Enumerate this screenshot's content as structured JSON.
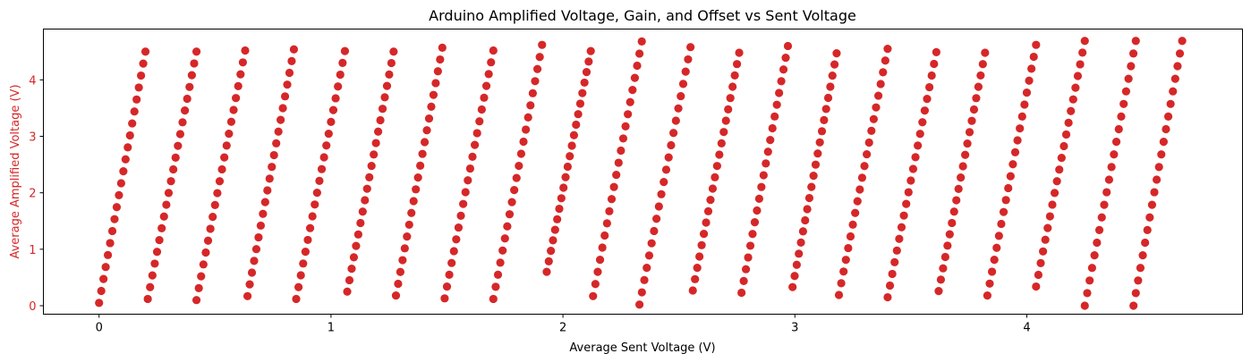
{
  "chart_data": {
    "type": "scatter",
    "title": "Arduino Amplified Voltage, Gain, and Offset vs Sent Voltage",
    "xlabel": "Average Sent Voltage (V)",
    "ylabel": "Average Amplified Voltage (V)",
    "xlim": [
      -0.24,
      4.93
    ],
    "ylim": [
      -0.15,
      4.9
    ],
    "xticks": [
      0,
      1,
      2,
      3,
      4
    ],
    "xtick_labels": [
      "0",
      "1",
      "2",
      "3",
      "4"
    ],
    "yticks": [
      0,
      1,
      2,
      3,
      4
    ],
    "ytick_labels": [
      "0",
      "1",
      "2",
      "3",
      "4"
    ],
    "grid": false,
    "color": "#d62728",
    "ylabel_color": "#d62728",
    "series": [
      {
        "segments": [
          {
            "x0": 0.0,
            "x1": 0.2,
            "y0": 0.05,
            "y1": 4.5
          },
          {
            "x0": 0.21,
            "x1": 0.42,
            "y0": 0.12,
            "y1": 4.5
          },
          {
            "x0": 0.42,
            "x1": 0.63,
            "y0": 0.1,
            "y1": 4.52
          },
          {
            "x0": 0.64,
            "x1": 0.84,
            "y0": 0.17,
            "y1": 4.54
          },
          {
            "x0": 0.85,
            "x1": 1.06,
            "y0": 0.12,
            "y1": 4.51
          },
          {
            "x0": 1.07,
            "x1": 1.27,
            "y0": 0.25,
            "y1": 4.5
          },
          {
            "x0": 1.28,
            "x1": 1.48,
            "y0": 0.18,
            "y1": 4.57
          },
          {
            "x0": 1.49,
            "x1": 1.7,
            "y0": 0.13,
            "y1": 4.52
          },
          {
            "x0": 1.7,
            "x1": 1.91,
            "y0": 0.12,
            "y1": 4.62
          },
          {
            "x0": 1.93,
            "x1": 2.12,
            "y0": 0.6,
            "y1": 4.51
          },
          {
            "x0": 2.13,
            "x1": 2.34,
            "y0": 0.17,
            "y1": 4.68
          },
          {
            "x0": 2.33,
            "x1": 2.55,
            "y0": 0.02,
            "y1": 4.58
          },
          {
            "x0": 2.56,
            "x1": 2.76,
            "y0": 0.27,
            "y1": 4.48
          },
          {
            "x0": 2.77,
            "x1": 2.97,
            "y0": 0.23,
            "y1": 4.6
          },
          {
            "x0": 2.99,
            "x1": 3.18,
            "y0": 0.33,
            "y1": 4.47
          },
          {
            "x0": 3.19,
            "x1": 3.4,
            "y0": 0.19,
            "y1": 4.55
          },
          {
            "x0": 3.4,
            "x1": 3.61,
            "y0": 0.15,
            "y1": 4.49
          },
          {
            "x0": 3.62,
            "x1": 3.82,
            "y0": 0.26,
            "y1": 4.48
          },
          {
            "x0": 3.83,
            "x1": 4.04,
            "y0": 0.18,
            "y1": 4.62
          },
          {
            "x0": 4.04,
            "x1": 4.25,
            "y0": 0.34,
            "y1": 4.69
          },
          {
            "x0": 4.25,
            "x1": 4.47,
            "y0": 0.0,
            "y1": 4.69
          },
          {
            "x0": 4.46,
            "x1": 4.67,
            "y0": 0.0,
            "y1": 4.69
          }
        ],
        "points_per_segment": 22
      }
    ]
  }
}
